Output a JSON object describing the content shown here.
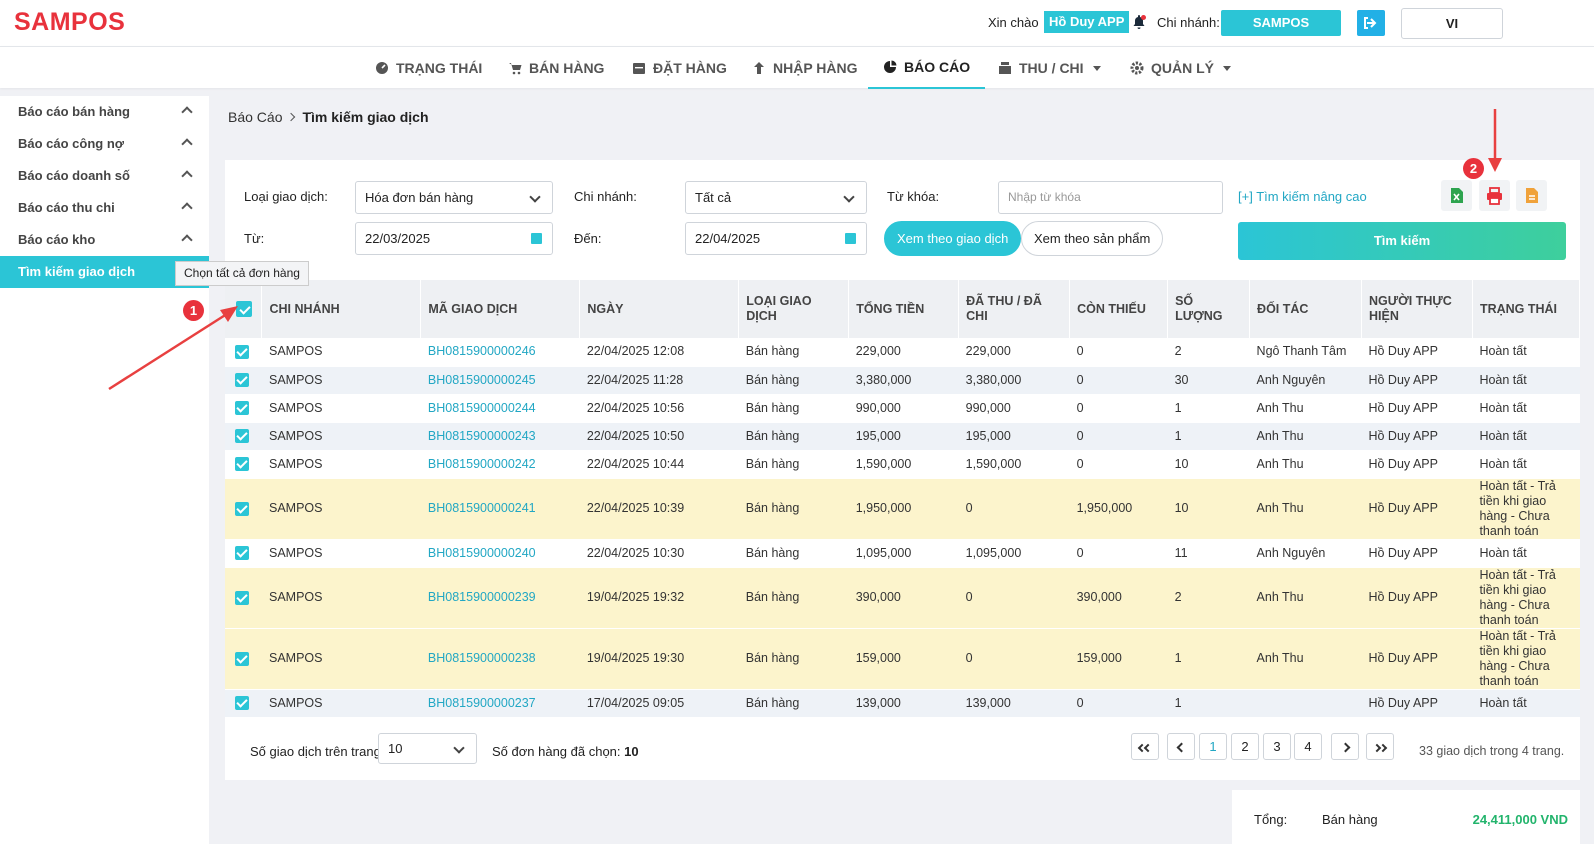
{
  "header": {
    "logo": "SAMPOS",
    "greeting": "Xin chào",
    "user": "Hồ Duy APP",
    "branch_label": "Chi nhánh:",
    "branch": "SAMPOS",
    "language": "VI"
  },
  "nav": [
    {
      "label": "TRẠNG THÁI",
      "icon": "dashboard-icon"
    },
    {
      "label": "BÁN HÀNG",
      "icon": "cart-icon"
    },
    {
      "label": "ĐẶT HÀNG",
      "icon": "calendar-icon"
    },
    {
      "label": "NHẬP HÀNG",
      "icon": "arrow-up-icon"
    },
    {
      "label": "BÁO CÁO",
      "icon": "pie-chart-icon",
      "active": true
    },
    {
      "label": "THU / CHI",
      "icon": "cash-register-icon"
    },
    {
      "label": "QUẢN LÝ",
      "icon": "gear-icon"
    }
  ],
  "sidebar": {
    "items": [
      {
        "label": "Báo cáo bán hàng"
      },
      {
        "label": "Báo cáo công nợ"
      },
      {
        "label": "Báo cáo doanh số"
      },
      {
        "label": "Báo cáo thu chi"
      },
      {
        "label": "Báo cáo kho"
      },
      {
        "label": "Tìm kiếm giao dịch",
        "active": true
      }
    ],
    "tooltip": "Chọn tất cả đơn hàng"
  },
  "breadcrumb": {
    "parent": "Báo Cáo",
    "current": "Tìm kiếm giao dịch"
  },
  "filters": {
    "type_label": "Loại giao dịch:",
    "type_value": "Hóa đơn bán hàng",
    "branch_label": "Chi nhánh:",
    "branch_value": "Tất cả",
    "keyword_label": "Từ khóa:",
    "keyword_placeholder": "Nhập từ khóa",
    "advanced": "[+] Tìm kiếm nâng cao",
    "from_label": "Từ:",
    "from_value": "22/03/2025",
    "to_label": "Đến:",
    "to_value": "22/04/2025",
    "view_by_transaction": "Xem theo giao dịch",
    "view_by_product": "Xem theo sản phẩm",
    "search_button": "Tìm kiếm"
  },
  "table": {
    "columns": [
      "CHI NHÁNH",
      "MÃ GIAO DỊCH",
      "NGÀY",
      "LOẠI GIAO DỊCH",
      "TỔNG TIỀN",
      "ĐÃ THU / ĐÃ CHI",
      "CÒN THIẾU",
      "SỐ LƯỢNG",
      "ĐỐI TÁC",
      "NGƯỜI THỰC HIỆN",
      "TRẠNG THÁI"
    ],
    "rows": [
      [
        "SAMPOS",
        "BH0815900000246",
        "22/04/2025 12:08",
        "Bán hàng",
        "229,000",
        "229,000",
        "0",
        "2",
        "Ngô Thanh Tâm",
        "Hồ Duy APP",
        "Hoàn tất"
      ],
      [
        "SAMPOS",
        "BH0815900000245",
        "22/04/2025 11:28",
        "Bán hàng",
        "3,380,000",
        "3,380,000",
        "0",
        "30",
        "Anh Nguyên",
        "Hồ Duy APP",
        "Hoàn tất"
      ],
      [
        "SAMPOS",
        "BH0815900000244",
        "22/04/2025 10:56",
        "Bán hàng",
        "990,000",
        "990,000",
        "0",
        "1",
        "Anh Thu",
        "Hồ Duy APP",
        "Hoàn tất"
      ],
      [
        "SAMPOS",
        "BH0815900000243",
        "22/04/2025 10:50",
        "Bán hàng",
        "195,000",
        "195,000",
        "0",
        "1",
        "Anh Thu",
        "Hồ Duy APP",
        "Hoàn tất"
      ],
      [
        "SAMPOS",
        "BH0815900000242",
        "22/04/2025 10:44",
        "Bán hàng",
        "1,590,000",
        "1,590,000",
        "0",
        "10",
        "Anh Thu",
        "Hồ Duy APP",
        "Hoàn tất"
      ],
      [
        "SAMPOS",
        "BH0815900000241",
        "22/04/2025 10:39",
        "Bán hàng",
        "1,950,000",
        "0",
        "1,950,000",
        "10",
        "Anh Thu",
        "Hồ Duy APP",
        "Hoàn tất - Trả tiền khi giao hàng - Chưa thanh toán"
      ],
      [
        "SAMPOS",
        "BH0815900000240",
        "22/04/2025 10:30",
        "Bán hàng",
        "1,095,000",
        "1,095,000",
        "0",
        "11",
        "Anh Nguyên",
        "Hồ Duy APP",
        "Hoàn tất"
      ],
      [
        "SAMPOS",
        "BH0815900000239",
        "19/04/2025 19:32",
        "Bán hàng",
        "390,000",
        "0",
        "390,000",
        "2",
        "Anh Thu",
        "Hồ Duy APP",
        "Hoàn tất - Trả tiền khi giao hàng - Chưa thanh toán"
      ],
      [
        "SAMPOS",
        "BH0815900000238",
        "19/04/2025 19:30",
        "Bán hàng",
        "159,000",
        "0",
        "159,000",
        "1",
        "Anh Thu",
        "Hồ Duy APP",
        "Hoàn tất - Trả tiền khi giao hàng - Chưa thanh toán"
      ],
      [
        "SAMPOS",
        "BH0815900000237",
        "17/04/2025 09:05",
        "Bán hàng",
        "139,000",
        "139,000",
        "0",
        "1",
        "",
        "Hồ Duy APP",
        "Hoàn tất"
      ]
    ]
  },
  "footer": {
    "per_page_label": "Số giao dịch trên trang:",
    "per_page_value": "10",
    "selected_label": "Số đơn hàng đã chọn:",
    "selected_value": "10",
    "pages": [
      "1",
      "2",
      "3",
      "4"
    ],
    "current_page": "1",
    "summary": "33 giao dịch trong 4 trang."
  },
  "total": {
    "label": "Tổng:",
    "type": "Bán hàng",
    "amount": "24,411,000 VND"
  },
  "annotations": {
    "marker1": "1",
    "marker2": "2"
  },
  "colors": {
    "brand": "#e8323c",
    "accent": "#2bc5d6",
    "link": "#22a7c4",
    "warn_row": "#fcf4cc",
    "total": "#22b46c"
  }
}
